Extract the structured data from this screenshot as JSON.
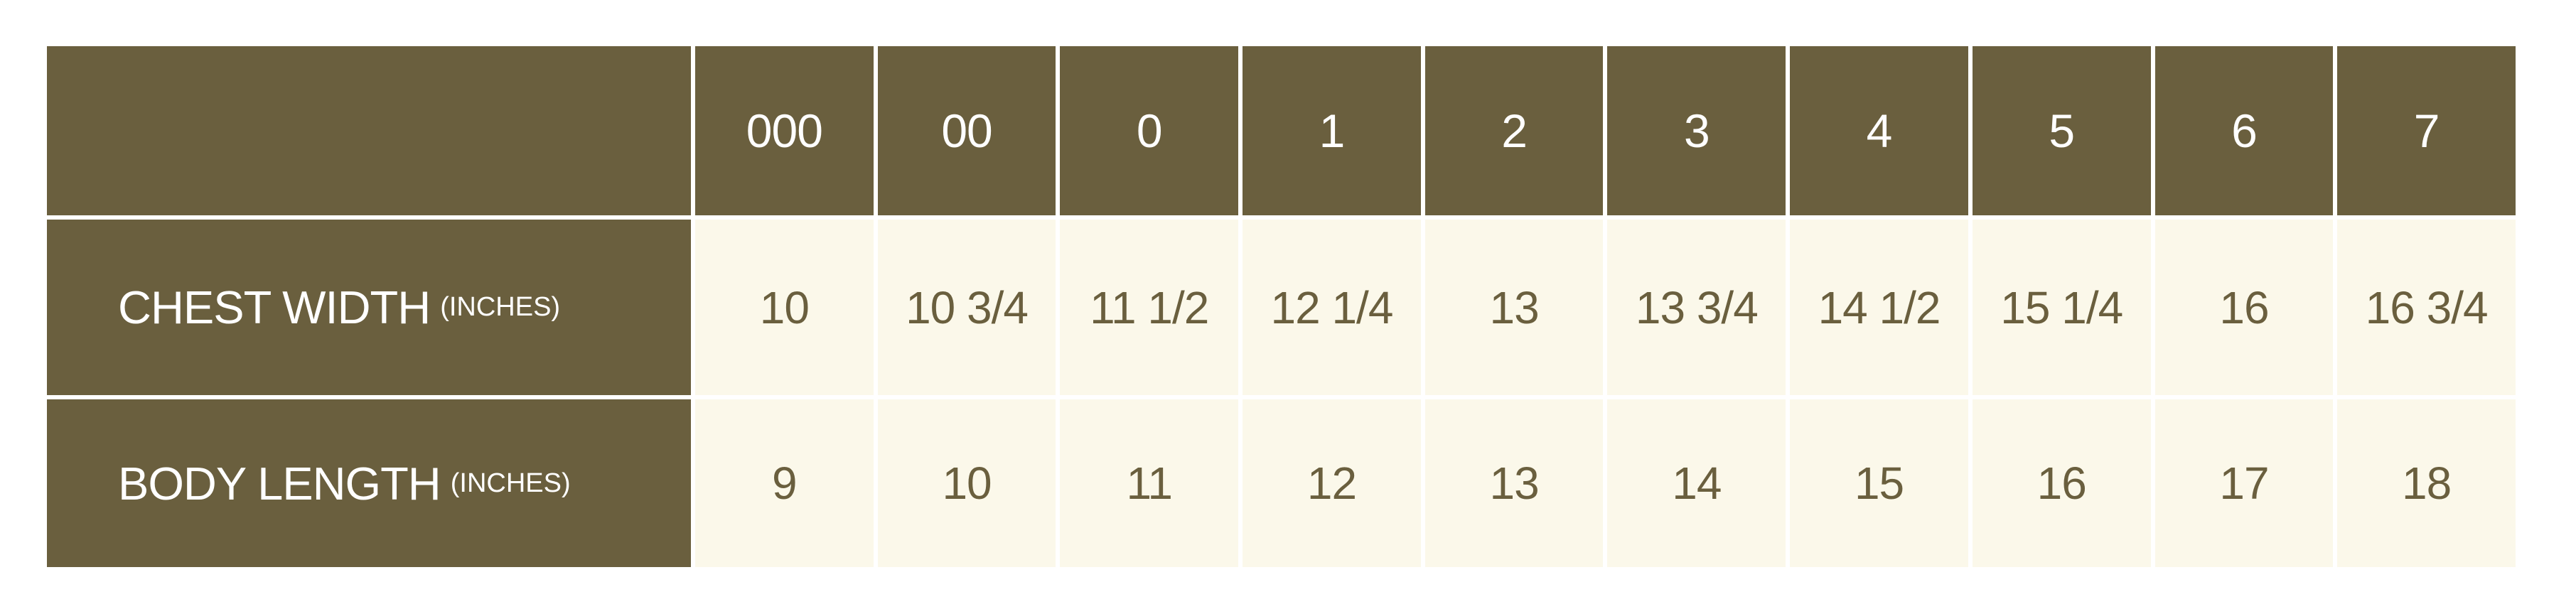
{
  "table": {
    "corner_label": "",
    "size_headers": [
      "000",
      "00",
      "0",
      "1",
      "2",
      "3",
      "4",
      "5",
      "6",
      "7"
    ],
    "rows": [
      {
        "label": "CHEST WIDTH",
        "unit": "(INCHES)",
        "values": [
          "10",
          "10 3/4",
          "11 1/2",
          "12 1/4",
          "13",
          "13 3/4",
          "14 1/2",
          "15 1/4",
          "16",
          "16 3/4"
        ]
      },
      {
        "label": "BODY LENGTH",
        "unit": "(INCHES)",
        "values": [
          "9",
          "10",
          "11",
          "12",
          "13",
          "14",
          "15",
          "16",
          "17",
          "18"
        ]
      }
    ],
    "colors": {
      "header_bg": "#6a5f3e",
      "header_text": "#ffffff",
      "cell_bg": "#fbf8ea",
      "cell_text": "#6a5f3e",
      "grid_lines": "#ffffff",
      "page_bg": "#ffffff"
    }
  },
  "chart_data": {
    "type": "table",
    "title": "",
    "categories": [
      "000",
      "00",
      "0",
      "1",
      "2",
      "3",
      "4",
      "5",
      "6",
      "7"
    ],
    "series": [
      {
        "name": "CHEST WIDTH (INCHES)",
        "values": [
          10,
          10.75,
          11.5,
          12.25,
          13,
          13.75,
          14.5,
          15.25,
          16,
          16.75
        ]
      },
      {
        "name": "BODY LENGTH (INCHES)",
        "values": [
          9,
          10,
          11,
          12,
          13,
          14,
          15,
          16,
          17,
          18
        ]
      }
    ],
    "layout": {
      "grid": "white separators",
      "legend_position": "none"
    }
  }
}
